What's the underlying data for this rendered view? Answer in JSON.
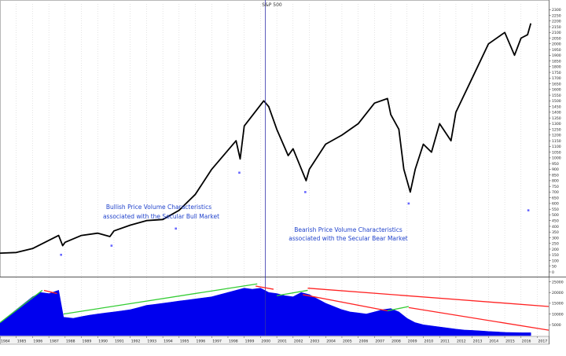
{
  "title": "S&P 500",
  "annotations": {
    "bullish_line1": "Bullish Price Volume Characteristics",
    "bullish_line2": "associated with the Secular Bull Market",
    "bearish_line1": "Bearish Price Volume Characteristics",
    "bearish_line2": "associated with the Secular Bear Market"
  },
  "colors": {
    "price": "#000000",
    "volume": "#0000ee",
    "up_trend": "#33cc33",
    "down_trend": "#ff2222",
    "annotation_text": "#2244cc",
    "cursor_line": "#3333aa",
    "marker": "#6666ff"
  },
  "chart_data": [
    {
      "type": "line",
      "title": "S&P 500",
      "x": [
        1984,
        1985,
        1986,
        1987.6,
        1987.85,
        1988,
        1989,
        1990,
        1990.75,
        1991,
        1992,
        1993,
        1994,
        1995,
        1996,
        1997,
        1998.5,
        1998.75,
        1999,
        2000.2,
        2000.5,
        2001,
        2001.7,
        2002,
        2002.8,
        2003,
        2004,
        2005,
        2006,
        2007,
        2007.8,
        2008,
        2008.5,
        2008.8,
        2009.2,
        2009.5,
        2010,
        2010.5,
        2011,
        2011.7,
        2012,
        2013,
        2014,
        2015,
        2015.6,
        2016,
        2016.4,
        2016.6
      ],
      "y": [
        165,
        170,
        205,
        320,
        230,
        260,
        320,
        340,
        310,
        360,
        410,
        450,
        460,
        540,
        680,
        900,
        1150,
        990,
        1280,
        1500,
        1450,
        1250,
        1020,
        1080,
        800,
        900,
        1120,
        1200,
        1300,
        1480,
        1520,
        1380,
        1250,
        900,
        700,
        900,
        1120,
        1050,
        1300,
        1150,
        1400,
        1700,
        2000,
        2100,
        1900,
        2050,
        2080,
        2180
      ],
      "ylim": [
        0,
        2350
      ],
      "yticks": [
        0,
        50,
        100,
        150,
        200,
        250,
        300,
        350,
        400,
        450,
        500,
        550,
        600,
        650,
        700,
        750,
        800,
        850,
        900,
        950,
        1000,
        1050,
        1100,
        1150,
        1200,
        1250,
        1300,
        1350,
        1400,
        1450,
        1500,
        1550,
        1600,
        1650,
        1700,
        1750,
        1800,
        1850,
        1900,
        1950,
        2000,
        2050,
        2100,
        2150,
        2200,
        2250,
        2300
      ],
      "markers": [
        {
          "x": 1987.75,
          "y": 150
        },
        {
          "x": 1990.85,
          "y": 230
        },
        {
          "x": 1994.8,
          "y": 380
        },
        {
          "x": 1998.7,
          "y": 870
        },
        {
          "x": 2002.75,
          "y": 700
        },
        {
          "x": 2009.1,
          "y": 600
        },
        {
          "x": 2016.45,
          "y": 540
        }
      ],
      "cursor_x": 2000.3
    },
    {
      "type": "area",
      "x": [
        1984,
        1984.5,
        1985,
        1985.5,
        1986,
        1986.5,
        1987,
        1987.6,
        1987.9,
        1988.5,
        1989,
        1989.5,
        1990,
        1990.5,
        1991,
        1991.5,
        1992,
        1992.5,
        1993,
        1993.5,
        1994,
        1994.5,
        1995,
        1995.5,
        1996,
        1996.5,
        1997,
        1997.5,
        1998,
        1998.5,
        1999,
        1999.5,
        2000,
        2000.5,
        2001,
        2001.5,
        2002,
        2002.5,
        2003,
        2003.5,
        2004,
        2004.5,
        2005,
        2005.5,
        2006,
        2006.5,
        2007,
        2007.5,
        2008,
        2008.5,
        2009,
        2009.5,
        2010,
        2010.5,
        2011,
        2011.5,
        2012,
        2012.5,
        2013,
        2013.5,
        2014,
        2014.5,
        2015,
        2015.5,
        2016,
        2016.6
      ],
      "values": [
        6000,
        9000,
        12000,
        15000,
        18000,
        20000,
        19500,
        21000,
        8500,
        8000,
        8800,
        9500,
        10000,
        10500,
        11000,
        11500,
        12000,
        13000,
        14000,
        14500,
        15000,
        15500,
        16000,
        16500,
        17000,
        17500,
        18000,
        19000,
        20000,
        21000,
        22000,
        21500,
        22000,
        20000,
        19500,
        18500,
        18000,
        20000,
        19000,
        17000,
        15000,
        13500,
        12000,
        11000,
        10500,
        10000,
        11000,
        12000,
        12500,
        11000,
        8000,
        6000,
        5000,
        4500,
        4000,
        3500,
        3000,
        2600,
        2400,
        2200,
        1900,
        1700,
        1500,
        1400,
        1300,
        1300
      ],
      "ylim": [
        0,
        27000
      ],
      "yticks": [
        5000,
        10000,
        15000,
        20000,
        25000
      ],
      "yticklabels": [
        "5000",
        "10000",
        "15000",
        "20000",
        "25000"
      ]
    }
  ],
  "trend_lines": [
    {
      "color": "up",
      "x1": 1984,
      "y1": 6000,
      "x2": 1986.6,
      "y2": 21000
    },
    {
      "color": "down",
      "x1": 1986.7,
      "y1": 21000,
      "x2": 1987.5,
      "y2": 19500
    },
    {
      "color": "up",
      "x1": 1987.9,
      "y1": 10000,
      "x2": 1999.8,
      "y2": 24000
    },
    {
      "color": "down",
      "x1": 1999.7,
      "y1": 23000,
      "x2": 2000.8,
      "y2": 21500
    },
    {
      "color": "up",
      "x1": 2001,
      "y1": 18500,
      "x2": 2002.9,
      "y2": 21000
    },
    {
      "color": "down",
      "x1": 2002.9,
      "y1": 22000,
      "x2": 2017.7,
      "y2": 13500
    },
    {
      "color": "down",
      "x1": 2002.6,
      "y1": 19000,
      "x2": 2007.8,
      "y2": 11500
    },
    {
      "color": "up",
      "x1": 2007.8,
      "y1": 11500,
      "x2": 2009.1,
      "y2": 13500
    },
    {
      "color": "down",
      "x1": 2009.1,
      "y1": 13000,
      "x2": 2017.7,
      "y2": 2500
    }
  ],
  "x_axis": {
    "ticks": [
      1984,
      1985,
      1986,
      1987,
      1988,
      1989,
      1990,
      1991,
      1992,
      1993,
      1994,
      1995,
      1996,
      1997,
      1998,
      1999,
      2000,
      2001,
      2002,
      2003,
      2004,
      2005,
      2006,
      2007,
      2008,
      2009,
      2010,
      2011,
      2012,
      2013,
      2014,
      2015,
      2016,
      2017
    ],
    "range": [
      1984,
      2017.7
    ]
  }
}
